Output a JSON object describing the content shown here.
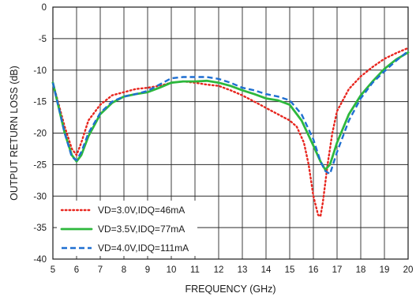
{
  "chart_data": {
    "type": "line",
    "title": "",
    "xlabel": "FREQUENCY (GHz)",
    "ylabel": "OUTPUT RETURN LOSS (dB)",
    "xlim": [
      5,
      20
    ],
    "ylim": [
      -40,
      0
    ],
    "xticks": [
      5,
      6,
      7,
      8,
      9,
      10,
      11,
      12,
      13,
      14,
      15,
      16,
      17,
      18,
      19,
      20
    ],
    "yticks": [
      0,
      -5,
      -10,
      -15,
      -20,
      -25,
      -30,
      -35,
      -40
    ],
    "grid": true,
    "legend_position": "bottom-left",
    "series": [
      {
        "name": "VD=3.0V,IDQ=46mA",
        "color": "#e8261f",
        "dash": "dotted",
        "x": [
          5.0,
          5.5,
          5.8,
          6.0,
          6.2,
          6.5,
          7.0,
          7.5,
          8.0,
          8.5,
          9.0,
          9.5,
          10.0,
          10.5,
          11.0,
          11.5,
          12.0,
          12.5,
          13.0,
          13.5,
          14.0,
          14.5,
          15.0,
          15.3,
          15.6,
          15.8,
          16.0,
          16.2,
          16.3,
          16.4,
          16.6,
          16.8,
          17.0,
          17.5,
          18.0,
          18.5,
          19.0,
          19.5,
          20.0
        ],
        "y": [
          -12,
          -19,
          -22.5,
          -23.5,
          -21.5,
          -18,
          -15.5,
          -14,
          -13.5,
          -13,
          -12.8,
          -12.5,
          -12,
          -11.8,
          -12,
          -12.3,
          -12.5,
          -13.2,
          -14,
          -15,
          -16,
          -17,
          -18,
          -19,
          -21.5,
          -25,
          -30,
          -33,
          -33.2,
          -31,
          -25,
          -20,
          -16.5,
          -13,
          -11,
          -9.5,
          -8.2,
          -7.3,
          -6.5
        ]
      },
      {
        "name": "VD=3.5V,IDQ=77mA",
        "color": "#2db83d",
        "dash": "solid",
        "x": [
          5.0,
          5.5,
          5.8,
          6.0,
          6.2,
          6.5,
          7.0,
          7.5,
          8.0,
          8.5,
          9.0,
          9.5,
          10.0,
          10.5,
          11.0,
          11.5,
          12.0,
          12.5,
          13.0,
          13.5,
          14.0,
          14.5,
          15.0,
          15.5,
          16.0,
          16.3,
          16.5,
          16.7,
          17.0,
          17.5,
          18.0,
          18.5,
          19.0,
          19.5,
          20.0
        ],
        "y": [
          -12,
          -20,
          -23.5,
          -24.5,
          -23.5,
          -20.5,
          -17,
          -15.2,
          -14.2,
          -13.8,
          -13.5,
          -12.8,
          -12,
          -11.8,
          -11.8,
          -11.7,
          -12,
          -12.5,
          -13.2,
          -13.8,
          -14.5,
          -14.8,
          -15.5,
          -18,
          -22,
          -24.5,
          -25.8,
          -25,
          -21.5,
          -17,
          -14,
          -11.8,
          -9.8,
          -8.3,
          -7.2
        ]
      },
      {
        "name": "VD=4.0V,IDQ=111mA",
        "color": "#1f6fd1",
        "dash": "dashed",
        "x": [
          5.0,
          5.5,
          5.8,
          6.0,
          6.2,
          6.5,
          7.0,
          7.5,
          8.0,
          8.5,
          9.0,
          9.5,
          10.0,
          10.5,
          11.0,
          11.5,
          12.0,
          12.5,
          13.0,
          13.5,
          14.0,
          14.5,
          15.0,
          15.5,
          16.0,
          16.3,
          16.5,
          16.7,
          17.0,
          17.5,
          18.0,
          18.5,
          19.0,
          19.5,
          20.0
        ],
        "y": [
          -12,
          -20,
          -23.8,
          -24.3,
          -23,
          -20,
          -16.8,
          -15,
          -14.2,
          -13.8,
          -13.3,
          -12.3,
          -11.3,
          -11.1,
          -11.1,
          -11.1,
          -11.4,
          -12,
          -12.8,
          -13.2,
          -13.8,
          -14.2,
          -14.8,
          -17,
          -21,
          -24.5,
          -26,
          -26.5,
          -23,
          -18,
          -14.5,
          -12,
          -10.2,
          -8.5,
          -7.0
        ]
      }
    ]
  }
}
